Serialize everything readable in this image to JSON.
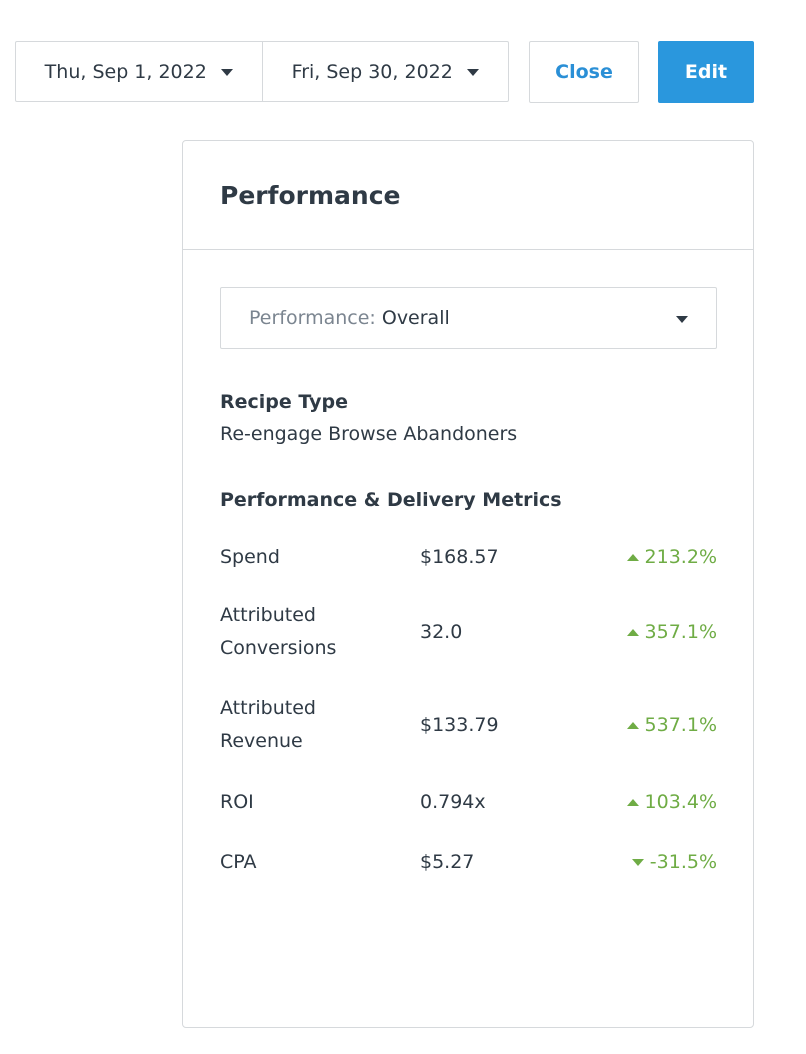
{
  "date_range": {
    "start": "Thu, Sep 1, 2022",
    "end": "Fri, Sep 30, 2022"
  },
  "buttons": {
    "close_label": "Close",
    "edit_label": "Edit"
  },
  "card": {
    "title": "Performance",
    "performance_select": {
      "prefix": "Performance:",
      "value": "Overall"
    },
    "recipe_type": {
      "label": "Recipe Type",
      "value": "Re-engage Browse Abandoners"
    },
    "metrics_heading": "Performance & Delivery Metrics",
    "metrics": [
      {
        "label_line1": "Spend",
        "label_line2": "",
        "value": "$168.57",
        "change": "213.2%",
        "direction": "up"
      },
      {
        "label_line1": "Attributed",
        "label_line2": "Conversions",
        "value": "32.0",
        "change": "357.1%",
        "direction": "up"
      },
      {
        "label_line1": "Attributed",
        "label_line2": "Revenue",
        "value": "$133.79",
        "change": "537.1%",
        "direction": "up"
      },
      {
        "label_line1": "ROI",
        "label_line2": "",
        "value": "0.794x",
        "change": "103.4%",
        "direction": "up"
      },
      {
        "label_line1": "CPA",
        "label_line2": "",
        "value": "$5.27",
        "change": "-31.5%",
        "direction": "down"
      }
    ]
  },
  "colors": {
    "accent_blue": "#2a97dd",
    "link_blue": "#2a8fd6",
    "positive_green": "#6fac45",
    "border": "#d6d9dc",
    "text": "#2f3a45"
  }
}
